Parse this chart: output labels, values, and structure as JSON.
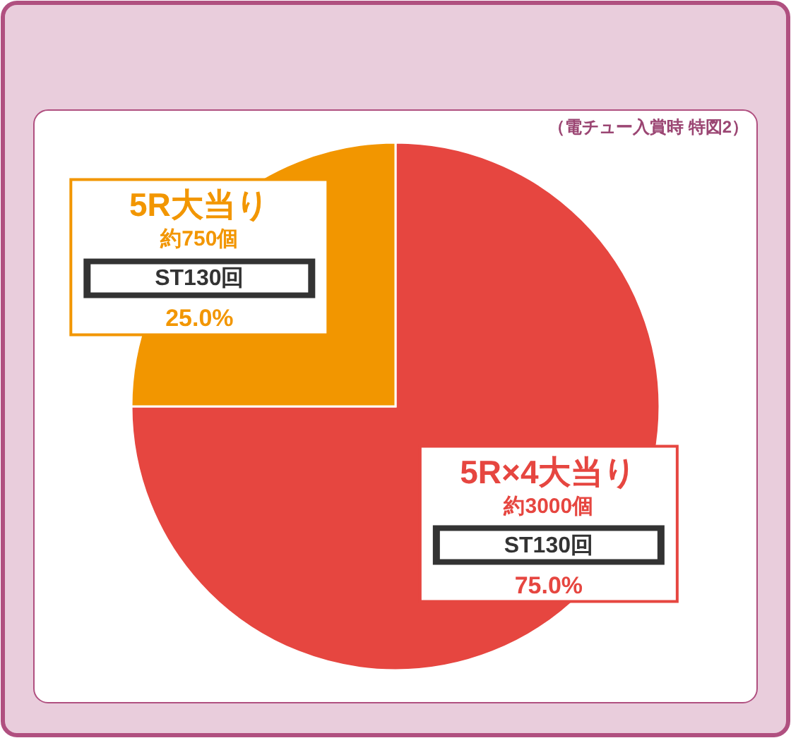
{
  "chart_data": {
    "type": "pie",
    "categories": [
      "5R×4大当り",
      "5R大当り"
    ],
    "values": [
      75.0,
      25.0
    ],
    "colors": [
      "#e64640",
      "#f29600"
    ],
    "value_labels": [
      "75.0%",
      "25.0%"
    ],
    "annotations": [
      "（電チュー入賞時 特図2）",
      {
        "text": "約3000個",
        "x": "5R×4大当り"
      },
      {
        "text": "ST130回",
        "x": "5R×4大当り"
      },
      {
        "text": "約750個",
        "x": "5R大当り"
      },
      {
        "text": "ST130回",
        "x": "5R大当り"
      }
    ]
  }
}
